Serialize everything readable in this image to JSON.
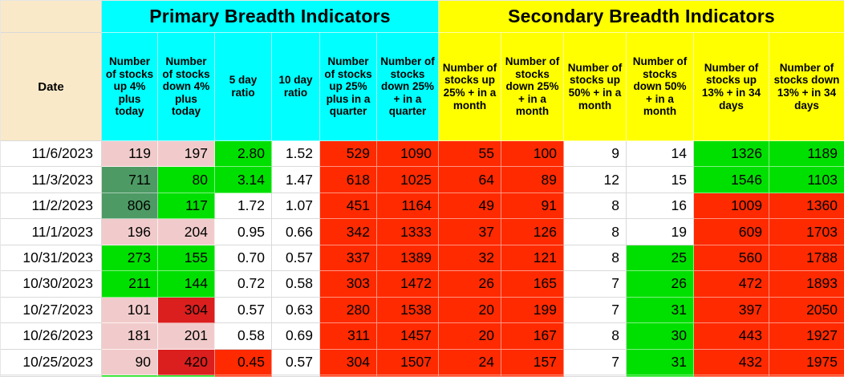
{
  "table": {
    "primary_title": "Primary Breadth Indicators",
    "secondary_title": "Secondary Breadth Indicators",
    "date_header": "Date",
    "column_headers": [
      "Number of stocks up 4% plus today",
      "Number of stocks down 4% plus today",
      "5 day ratio",
      "10 day ratio",
      "Number of stocks up 25% plus in a quarter",
      "Number of stocks down 25% + in a quarter",
      "Number of stocks up 25% + in a month",
      "Number of stocks down 25% + in a month",
      "Number of stocks up 50% + in a month",
      "Number of stocks down 50% + in a month",
      "Number of stocks up 13% + in 34 days",
      "Number of stocks down 13% + in 34 days"
    ],
    "rows": [
      {
        "date": "11/6/2023",
        "values": [
          "119",
          "197",
          "2.80",
          "1.52",
          "529",
          "1090",
          "55",
          "100",
          "9",
          "14",
          "1326",
          "1189"
        ],
        "colors": [
          "pink",
          "pink",
          "green",
          "white",
          "red",
          "red",
          "red",
          "red",
          "white",
          "white",
          "green",
          "green"
        ]
      },
      {
        "date": "11/3/2023",
        "values": [
          "711",
          "80",
          "3.14",
          "1.47",
          "618",
          "1025",
          "64",
          "89",
          "12",
          "15",
          "1546",
          "1103"
        ],
        "colors": [
          "darkgreen",
          "green",
          "green",
          "white",
          "red",
          "red",
          "red",
          "red",
          "white",
          "white",
          "green",
          "green"
        ]
      },
      {
        "date": "11/2/2023",
        "values": [
          "806",
          "117",
          "1.72",
          "1.07",
          "451",
          "1164",
          "49",
          "91",
          "8",
          "16",
          "1009",
          "1360"
        ],
        "colors": [
          "darkgreen",
          "green",
          "white",
          "white",
          "red",
          "red",
          "red",
          "red",
          "white",
          "white",
          "red",
          "red"
        ]
      },
      {
        "date": "11/1/2023",
        "values": [
          "196",
          "204",
          "0.95",
          "0.66",
          "342",
          "1333",
          "37",
          "126",
          "8",
          "19",
          "609",
          "1703"
        ],
        "colors": [
          "pink",
          "pink",
          "white",
          "white",
          "red",
          "red",
          "red",
          "red",
          "white",
          "white",
          "red",
          "red"
        ]
      },
      {
        "date": "10/31/2023",
        "values": [
          "273",
          "155",
          "0.70",
          "0.57",
          "337",
          "1389",
          "32",
          "121",
          "8",
          "25",
          "560",
          "1788"
        ],
        "colors": [
          "green",
          "green",
          "white",
          "white",
          "red",
          "red",
          "red",
          "red",
          "white",
          "green",
          "red",
          "red"
        ]
      },
      {
        "date": "10/30/2023",
        "values": [
          "211",
          "144",
          "0.72",
          "0.58",
          "303",
          "1472",
          "26",
          "165",
          "7",
          "26",
          "472",
          "1893"
        ],
        "colors": [
          "green",
          "green",
          "white",
          "white",
          "red",
          "red",
          "red",
          "red",
          "white",
          "green",
          "red",
          "red"
        ]
      },
      {
        "date": "10/27/2023",
        "values": [
          "101",
          "304",
          "0.57",
          "0.63",
          "280",
          "1538",
          "20",
          "199",
          "7",
          "31",
          "397",
          "2050"
        ],
        "colors": [
          "pink",
          "darkred",
          "white",
          "white",
          "red",
          "red",
          "red",
          "red",
          "white",
          "green",
          "red",
          "red"
        ]
      },
      {
        "date": "10/26/2023",
        "values": [
          "181",
          "201",
          "0.58",
          "0.69",
          "311",
          "1457",
          "20",
          "167",
          "8",
          "30",
          "443",
          "1927"
        ],
        "colors": [
          "pink",
          "pink",
          "white",
          "white",
          "red",
          "red",
          "red",
          "red",
          "white",
          "green",
          "red",
          "red"
        ]
      },
      {
        "date": "10/25/2023",
        "values": [
          "90",
          "420",
          "0.45",
          "0.57",
          "304",
          "1507",
          "24",
          "157",
          "7",
          "31",
          "432",
          "1975"
        ],
        "colors": [
          "pink",
          "darkred",
          "red",
          "white",
          "red",
          "red",
          "red",
          "red",
          "white",
          "green",
          "red",
          "red"
        ]
      }
    ],
    "partial_row_colors": [
      "white",
      "green",
      "green",
      "red",
      "white",
      "red",
      "red",
      "red",
      "red",
      "white",
      "green",
      "red",
      "red"
    ]
  },
  "palette": {
    "header_primary_bg": "#00FFFF",
    "header_secondary_bg": "#FFFF00",
    "date_col_bg": "#FAE9C8",
    "cell_red": "#FF2A00",
    "cell_dark_red": "#DB1F1E",
    "cell_green": "#00E000",
    "cell_dark_green": "#4D9A64",
    "cell_pink": "#F1CBCB",
    "grid_line": "#D9D9D9"
  }
}
